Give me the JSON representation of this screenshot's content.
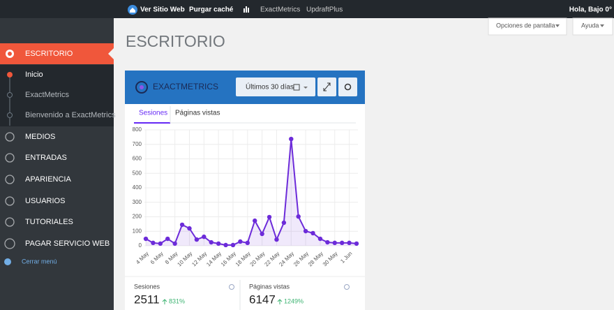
{
  "admin_bar": {
    "links": [
      "Ver Sitio Web",
      "Purgar caché",
      "ExactMetrics",
      "UpdraftPlus"
    ],
    "greeting": "Hola, Bajo 0°"
  },
  "sidebar": {
    "active": "ESCRITORIO",
    "submenu": [
      "Inicio",
      "ExactMetrics",
      "Bienvenido a ExactMetrics"
    ],
    "menu": [
      "MEDIOS",
      "ENTRADAS",
      "APARIENCIA",
      "USUARIOS",
      "TUTORIALES",
      "PAGAR SERVICIO WEB"
    ],
    "collapse": "Cerrar menú"
  },
  "page": {
    "title": "ESCRITORIO",
    "screen_options": "Opciones de pantalla",
    "help": "Ayuda"
  },
  "widget": {
    "brand": "EXACTMETRICS",
    "range": "Últimos 30 días",
    "tabs": [
      "Sesiones",
      "Páginas vistas"
    ],
    "chart": {
      "type": "line",
      "categories": [
        "4 May",
        null,
        "6 May",
        null,
        "8 May",
        null,
        "10 May",
        null,
        "12 May",
        null,
        "14 May",
        null,
        "16 May",
        null,
        "18 May",
        null,
        "20 May",
        null,
        "22 May",
        null,
        "24 May",
        null,
        "26 May",
        null,
        "28 May",
        null,
        "30 May",
        null,
        "1 Jun",
        null
      ],
      "values": [
        48,
        20,
        15,
        48,
        15,
        145,
        120,
        43,
        62,
        24,
        15,
        5,
        5,
        29,
        20,
        173,
        82,
        198,
        43,
        159,
        737,
        202,
        101,
        87,
        48,
        24,
        20,
        20,
        20,
        15
      ],
      "color": "#6c2bd9",
      "ylim": [
        0,
        800
      ],
      "yticks": [
        0,
        100,
        200,
        300,
        400,
        500,
        600,
        700,
        800
      ],
      "grid": true
    },
    "stats": [
      {
        "label": "Sesiones",
        "value": 2511,
        "change": "831%"
      },
      {
        "label": "Páginas vistas",
        "value": 6147,
        "change": "1249%"
      }
    ]
  }
}
